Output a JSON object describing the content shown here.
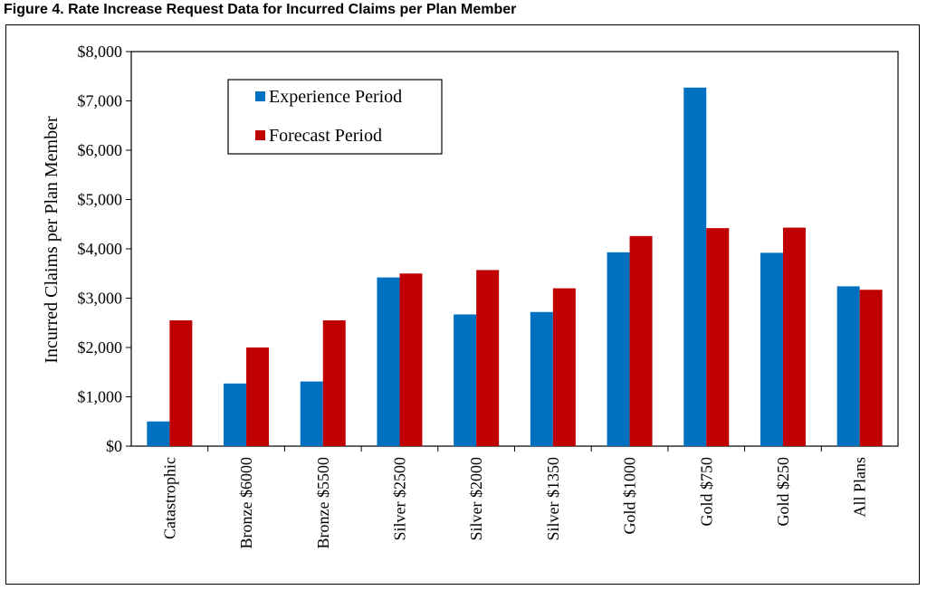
{
  "figure_title": "Figure 4.  Rate Increase Request Data for Incurred Claims per Plan Member",
  "chart_data": {
    "type": "bar",
    "ylabel": "Incurred Claims per Plan Member",
    "xlabel": "",
    "ylim": [
      0,
      8000
    ],
    "yticks": [
      0,
      1000,
      2000,
      3000,
      4000,
      5000,
      6000,
      7000,
      8000
    ],
    "ytick_labels": [
      "$0",
      "$1,000",
      "$2,000",
      "$3,000",
      "$4,000",
      "$5,000",
      "$6,000",
      "$7,000",
      "$8,000"
    ],
    "grid": false,
    "legend_position": "top-left",
    "categories": [
      "Catastrophic",
      "Bronze $6000",
      "Bronze $5500",
      "Silver $2500",
      "Silver $2000",
      "Silver $1350",
      "Gold $1000",
      "Gold $750",
      "Gold $250",
      "All Plans"
    ],
    "series": [
      {
        "name": "Experience Period",
        "color": "#0070C0",
        "values": [
          500,
          1270,
          1310,
          3420,
          2670,
          2720,
          3930,
          7270,
          3920,
          3240
        ]
      },
      {
        "name": "Forecast Period",
        "color": "#C00000",
        "values": [
          2550,
          2000,
          2550,
          3500,
          3570,
          3200,
          4260,
          4420,
          4430,
          3170
        ]
      }
    ]
  }
}
